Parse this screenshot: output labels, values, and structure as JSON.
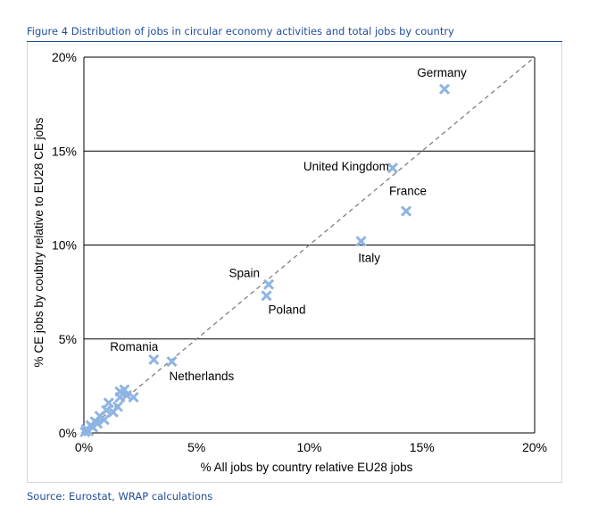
{
  "figure_title": "Figure 4 Distribution of jobs in circular economy activities and total jobs by country",
  "source": "Source: Eurostat, WRAP calculations",
  "colors": {
    "marker": "#8eb4e3",
    "diagonal": "#808080",
    "title": "#1f4e99",
    "grid": "#000000"
  },
  "chart_data": {
    "type": "scatter",
    "title": "",
    "xlabel": "% All jobs by country relative EU28 jobs",
    "ylabel": "% CE jobs by coubtry relative to  EU28 CE jobs",
    "xlim": [
      0,
      20
    ],
    "ylim": [
      0,
      20
    ],
    "x_ticks": [
      "0%",
      "5%",
      "10%",
      "15%",
      "20%"
    ],
    "y_ticks": [
      "0%",
      "5%",
      "10%",
      "15%",
      "20%"
    ],
    "grid": "horizontal",
    "reference_line": "y = x (dashed)",
    "marker": "x",
    "points": [
      {
        "label": "Germany",
        "x": 16.0,
        "y": 18.3
      },
      {
        "label": "United Kingdom",
        "x": 13.7,
        "y": 14.1
      },
      {
        "label": "France",
        "x": 14.3,
        "y": 11.8
      },
      {
        "label": "Italy",
        "x": 12.3,
        "y": 10.2
      },
      {
        "label": "Spain",
        "x": 8.2,
        "y": 7.9
      },
      {
        "label": "Poland",
        "x": 8.1,
        "y": 7.3
      },
      {
        "label": "Romania",
        "x": 3.1,
        "y": 3.9
      },
      {
        "label": "Netherlands",
        "x": 3.9,
        "y": 3.8
      },
      {
        "label": "",
        "x": 2.2,
        "y": 1.9
      },
      {
        "label": "",
        "x": 1.8,
        "y": 2.3
      },
      {
        "label": "",
        "x": 1.6,
        "y": 2.2
      },
      {
        "label": "",
        "x": 1.9,
        "y": 2.0
      },
      {
        "label": "",
        "x": 1.6,
        "y": 1.9
      },
      {
        "label": "",
        "x": 1.1,
        "y": 1.6
      },
      {
        "label": "",
        "x": 1.5,
        "y": 1.4
      },
      {
        "label": "",
        "x": 1.3,
        "y": 1.1
      },
      {
        "label": "",
        "x": 1.0,
        "y": 1.2
      },
      {
        "label": "",
        "x": 0.9,
        "y": 0.7
      },
      {
        "label": "",
        "x": 0.7,
        "y": 0.9
      },
      {
        "label": "",
        "x": 0.6,
        "y": 0.5
      },
      {
        "label": "",
        "x": 0.5,
        "y": 0.6
      },
      {
        "label": "",
        "x": 0.4,
        "y": 0.3
      },
      {
        "label": "",
        "x": 0.3,
        "y": 0.4
      },
      {
        "label": "",
        "x": 0.2,
        "y": 0.1
      },
      {
        "label": "",
        "x": 0.1,
        "y": 0.2
      },
      {
        "label": "",
        "x": 0.05,
        "y": 0.05
      }
    ]
  }
}
